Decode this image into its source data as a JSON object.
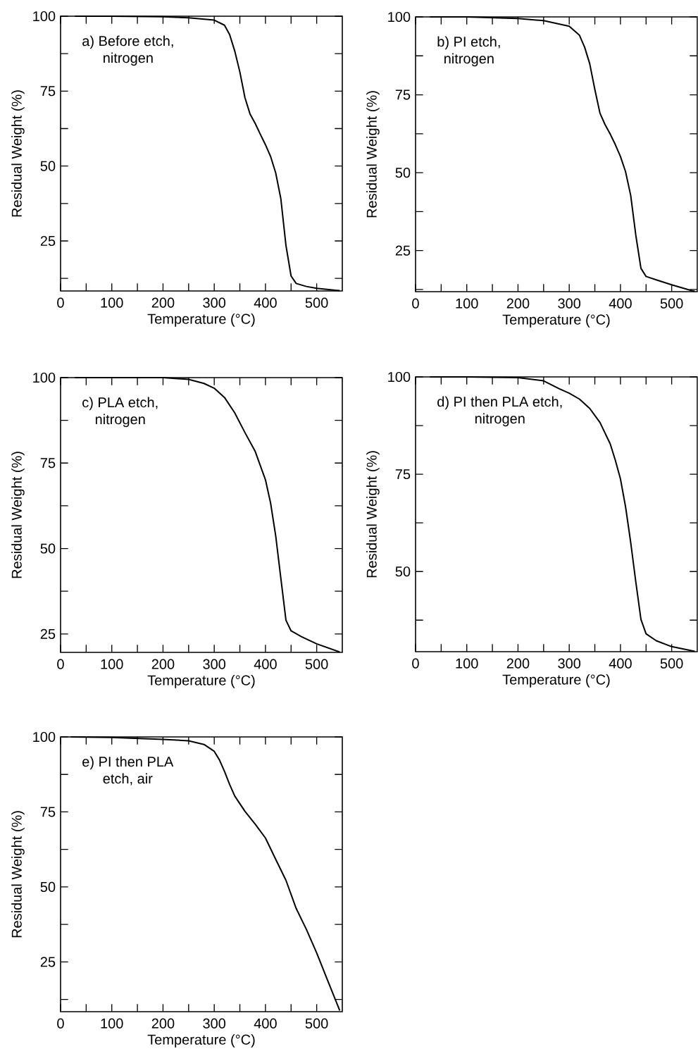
{
  "chart_data": [
    {
      "type": "line",
      "xlabel": "Temperature (°C)",
      "ylabel": "Residual Weight (%)",
      "annotations": [
        "a) Before etch,",
        "nitrogen"
      ],
      "color": "#000000",
      "x": [
        28,
        100,
        200,
        250,
        300,
        320,
        330,
        340,
        350,
        360,
        370,
        380,
        390,
        400,
        410,
        420,
        430,
        440,
        450,
        460,
        480,
        500,
        540,
        545
      ],
      "values": [
        100,
        100,
        99.8,
        99.5,
        98.7,
        97,
        93.9,
        88.4,
        81.4,
        72.8,
        67.3,
        64.2,
        60.6,
        57.1,
        53.2,
        47.7,
        39.1,
        23.5,
        13.3,
        10.8,
        9.8,
        9.2,
        8.5,
        8.4
      ],
      "xlim": [
        0,
        550
      ],
      "ylim": [
        8.3,
        100
      ],
      "xticks": [
        0,
        {
          "value": 50,
          "label": null
        },
        100,
        {
          "value": 150,
          "label": null
        },
        200,
        {
          "value": 250,
          "label": null
        },
        300,
        {
          "value": 350,
          "label": null
        },
        400,
        {
          "value": 450,
          "label": null
        },
        500
      ],
      "yticks": [
        {
          "value": 12.5,
          "label": null
        },
        25,
        {
          "value": 37.5,
          "label": null
        },
        50,
        {
          "value": 62.5,
          "label": null
        },
        75,
        {
          "value": 87.5,
          "label": null
        },
        100
      ]
    },
    {
      "type": "line",
      "xlabel": "Temperature (°C)",
      "ylabel": "Residual Weight (%)",
      "annotations": [
        "b) PI etch,",
        "nitrogen"
      ],
      "color": "#000000",
      "x": [
        28,
        100,
        200,
        250,
        300,
        320,
        330,
        340,
        350,
        360,
        370,
        380,
        390,
        400,
        410,
        420,
        430,
        440,
        450,
        470,
        500,
        540,
        545
      ],
      "values": [
        100,
        100,
        99.5,
        98.8,
        97,
        94.1,
        90.3,
        85,
        76.7,
        69.1,
        65.4,
        62.4,
        59,
        55.2,
        50.3,
        42.7,
        29.9,
        19.3,
        16.7,
        15.6,
        14,
        12.1,
        11.9
      ],
      "xlim": [
        0,
        550
      ],
      "ylim": [
        11.8,
        100
      ],
      "xticks": [
        0,
        {
          "value": 50,
          "label": null
        },
        100,
        {
          "value": 150,
          "label": null
        },
        200,
        {
          "value": 250,
          "label": null
        },
        300,
        {
          "value": 350,
          "label": null
        },
        400,
        {
          "value": 450,
          "label": null
        },
        500
      ],
      "yticks": [
        {
          "value": 12.5,
          "label": null
        },
        25,
        {
          "value": 37.5,
          "label": null
        },
        50,
        {
          "value": 62.5,
          "label": null
        },
        75,
        {
          "value": 87.5,
          "label": null
        },
        100
      ]
    },
    {
      "type": "line",
      "xlabel": "Temperature (°C)",
      "ylabel": "Residual Weight (%)",
      "annotations": [
        "c) PLA etch,",
        "nitrogen"
      ],
      "color": "#000000",
      "x": [
        28,
        100,
        200,
        250,
        280,
        300,
        320,
        340,
        360,
        380,
        400,
        410,
        420,
        430,
        440,
        450,
        470,
        500,
        545
      ],
      "values": [
        100,
        100,
        100,
        99.5,
        98.3,
        96.9,
        94.2,
        89.7,
        83.9,
        78.4,
        70.1,
        63.3,
        53.7,
        41.3,
        29,
        25.9,
        24.2,
        22.1,
        19.7
      ],
      "xlim": [
        0,
        550
      ],
      "ylim": [
        19.6,
        100
      ],
      "xticks": [
        0,
        {
          "value": 50,
          "label": null
        },
        100,
        {
          "value": 150,
          "label": null
        },
        200,
        {
          "value": 250,
          "label": null
        },
        300,
        {
          "value": 350,
          "label": null
        },
        400,
        {
          "value": 450,
          "label": null
        },
        500
      ],
      "yticks": [
        25,
        {
          "value": 37.5,
          "label": null
        },
        50,
        {
          "value": 62.5,
          "label": null
        },
        75,
        {
          "value": 87.5,
          "label": null
        },
        100
      ]
    },
    {
      "type": "line",
      "xlabel": "Temperature (°C)",
      "ylabel": "Residual Weight (%)",
      "annotations": [
        "d) PI then PLA etch,",
        "nitrogen"
      ],
      "color": "#000000",
      "x": [
        28,
        100,
        200,
        250,
        280,
        300,
        320,
        340,
        360,
        380,
        390,
        400,
        410,
        420,
        430,
        440,
        450,
        470,
        500,
        545
      ],
      "values": [
        100,
        100,
        99.8,
        99,
        97,
        95.8,
        94.3,
        91.9,
        88.3,
        82.8,
        78.6,
        73.8,
        66.6,
        57.5,
        47.3,
        37.7,
        34,
        32.2,
        30.7,
        29.5
      ],
      "xlim": [
        0,
        550
      ],
      "ylim": [
        29.4,
        100
      ],
      "xticks": [
        0,
        {
          "value": 50,
          "label": null
        },
        100,
        {
          "value": 150,
          "label": null
        },
        200,
        {
          "value": 250,
          "label": null
        },
        300,
        {
          "value": 350,
          "label": null
        },
        400,
        {
          "value": 450,
          "label": null
        },
        500
      ],
      "yticks": [
        {
          "value": 37.5,
          "label": null
        },
        50,
        {
          "value": 62.5,
          "label": null
        },
        75,
        {
          "value": 87.5,
          "label": null
        },
        100
      ]
    },
    {
      "type": "line",
      "xlabel": "Temperature (°C)",
      "ylabel": "Residual Weight (%)",
      "annotations": [
        "e) PI then PLA",
        "etch, air"
      ],
      "color": "#000000",
      "x": [
        20,
        100,
        200,
        250,
        280,
        300,
        310,
        320,
        330,
        340,
        360,
        380,
        400,
        420,
        440,
        460,
        480,
        500,
        520,
        545
      ],
      "values": [
        100,
        99.8,
        99.2,
        98.7,
        97.5,
        95.2,
        92.4,
        88.5,
        84.2,
        80.3,
        75.2,
        70.9,
        66.3,
        59.2,
        52.2,
        42.8,
        35.8,
        28,
        19.4,
        8.8
      ],
      "xlim": [
        0,
        550
      ],
      "ylim": [
        8.4,
        100
      ],
      "xticks": [
        0,
        {
          "value": 50,
          "label": null
        },
        100,
        {
          "value": 150,
          "label": null
        },
        200,
        {
          "value": 250,
          "label": null
        },
        300,
        {
          "value": 350,
          "label": null
        },
        400,
        {
          "value": 450,
          "label": null
        },
        500
      ],
      "yticks": [
        {
          "value": 12.5,
          "label": null
        },
        25,
        {
          "value": 37.5,
          "label": null
        },
        50,
        {
          "value": 62.5,
          "label": null
        },
        75,
        {
          "value": 87.5,
          "label": null
        },
        100
      ]
    }
  ]
}
